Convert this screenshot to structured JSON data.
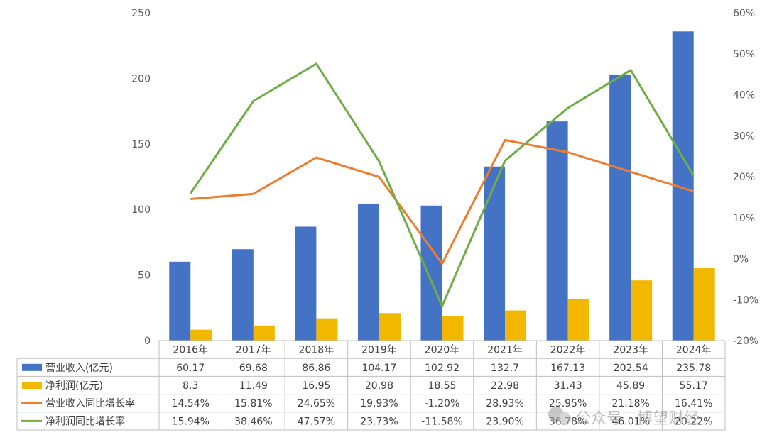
{
  "chart_data": {
    "type": "bar",
    "categories": [
      "2016年",
      "2017年",
      "2018年",
      "2019年",
      "2020年",
      "2021年",
      "2022年",
      "2023年",
      "2024年"
    ],
    "series": [
      {
        "name": "营业收入(亿元)",
        "kind": "bar",
        "axis": "left",
        "color": "#4472C4",
        "values": [
          60.17,
          69.68,
          86.86,
          104.17,
          102.92,
          132.7,
          167.13,
          202.54,
          235.78
        ],
        "labels": [
          "60.17",
          "69.68",
          "86.86",
          "104.17",
          "102.92",
          "132.7",
          "167.13",
          "202.54",
          "235.78"
        ]
      },
      {
        "name": "净利润(亿元)",
        "kind": "bar",
        "axis": "left",
        "color": "#F2B800",
        "values": [
          8.3,
          11.49,
          16.95,
          20.98,
          18.55,
          22.98,
          31.43,
          45.89,
          55.17
        ],
        "labels": [
          "8.3",
          "11.49",
          "16.95",
          "20.98",
          "18.55",
          "22.98",
          "31.43",
          "45.89",
          "55.17"
        ]
      },
      {
        "name": "营业收入同比增长率",
        "kind": "line",
        "axis": "right",
        "color": "#ED7D31",
        "values": [
          14.54,
          15.81,
          24.65,
          19.93,
          -1.2,
          28.93,
          25.95,
          21.18,
          16.41
        ],
        "labels": [
          "14.54%",
          "15.81%",
          "24.65%",
          "19.93%",
          "-1.20%",
          "28.93%",
          "25.95%",
          "21.18%",
          "16.41%"
        ]
      },
      {
        "name": "净利润同比增长率",
        "kind": "line",
        "axis": "right",
        "color": "#70AD47",
        "values": [
          15.94,
          38.46,
          47.57,
          23.73,
          -11.58,
          23.9,
          36.78,
          46.01,
          20.22
        ],
        "labels": [
          "15.94%",
          "38.46%",
          "47.57%",
          "23.73%",
          "-11.58%",
          "23.90%",
          "36.78%",
          "46.01%",
          "20.22%"
        ]
      }
    ],
    "y_left": {
      "ylim": [
        0,
        250
      ],
      "ticks": [
        "0",
        "50",
        "100",
        "150",
        "200",
        "250"
      ],
      "tick_values": [
        0,
        50,
        100,
        150,
        200,
        250
      ]
    },
    "y_right": {
      "ylim": [
        -20,
        60
      ],
      "ticks": [
        "-20%",
        "-10%",
        "0%",
        "10%",
        "20%",
        "30%",
        "40%",
        "50%",
        "60%"
      ],
      "tick_values": [
        -20,
        -10,
        0,
        10,
        20,
        30,
        40,
        50,
        60
      ]
    },
    "grid": false,
    "legend": "data-table-bottom"
  },
  "watermark": "公众号 · 博望财经"
}
